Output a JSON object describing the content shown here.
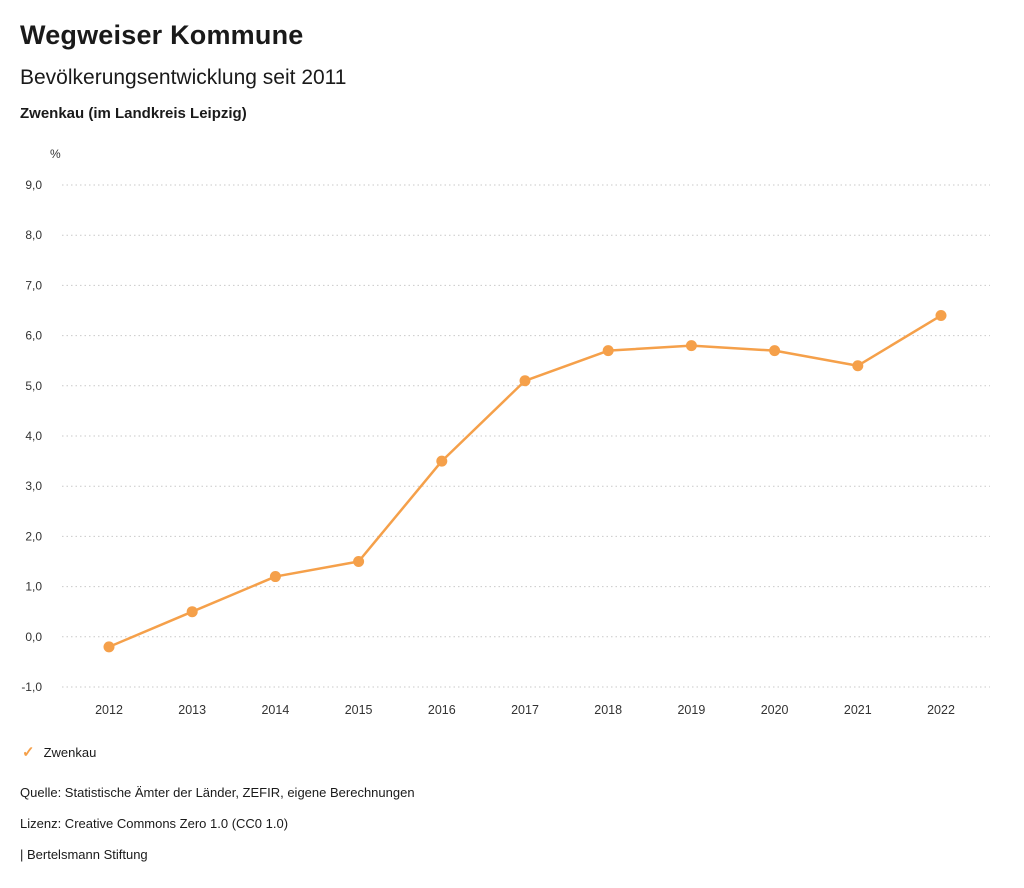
{
  "header": {
    "title": "Wegweiser Kommune",
    "subtitle": "Bevölkerungsentwicklung seit 2011",
    "chart_title": "Zwenkau (im Landkreis Leipzig)"
  },
  "legend": {
    "items": [
      {
        "label": "Zwenkau",
        "marker": "check-icon",
        "marker_glyph": "✓",
        "color": "#f5a04a"
      }
    ]
  },
  "footer": {
    "source": "Quelle: Statistische Ämter der Länder, ZEFIR, eigene Berechnungen",
    "license": "Lizenz: Creative Commons Zero 1.0 (CC0 1.0)",
    "attribution": "| Bertelsmann Stiftung"
  },
  "chart_data": {
    "type": "line",
    "title": "Zwenkau (im Landkreis Leipzig)",
    "xlabel": "",
    "ylabel": "%",
    "x": [
      2012,
      2013,
      2014,
      2015,
      2016,
      2017,
      2018,
      2019,
      2020,
      2021,
      2022
    ],
    "series": [
      {
        "name": "Zwenkau",
        "values": [
          -0.2,
          0.5,
          1.2,
          1.5,
          3.5,
          5.1,
          5.7,
          5.8,
          5.7,
          5.4,
          6.4
        ],
        "color": "#f5a04a"
      }
    ],
    "ylim": [
      -1,
      9
    ],
    "ytick_step": 1,
    "decimal_separator": ",",
    "grid": true,
    "legend_position": "bottom-left"
  }
}
